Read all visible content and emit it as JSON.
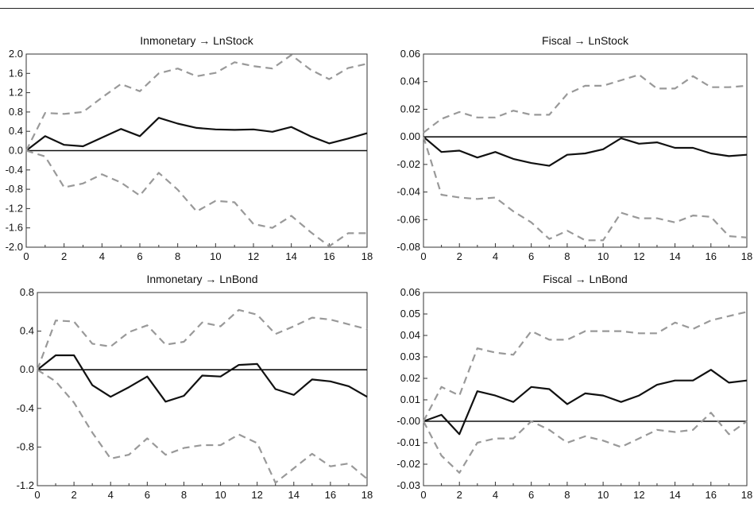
{
  "chart_data": [
    {
      "type": "line",
      "title": "Inmonetary → LnStock",
      "x": [
        0,
        1,
        2,
        3,
        4,
        5,
        6,
        7,
        8,
        9,
        10,
        11,
        12,
        13,
        14,
        15,
        16,
        17,
        18
      ],
      "xlim": [
        0,
        18
      ],
      "xticks": [
        0,
        2,
        4,
        6,
        8,
        10,
        12,
        14,
        16,
        18
      ],
      "xtick_labels": [
        "0",
        "2",
        "4",
        "6",
        "8",
        "10",
        "12",
        "14",
        "16",
        "18"
      ],
      "ylim": [
        -2.0,
        2.0
      ],
      "yticks": [
        -2.0,
        -1.6,
        -1.2,
        -0.8,
        -0.4,
        0.0,
        0.4,
        0.8,
        1.2,
        1.6,
        2.0
      ],
      "ytick_labels": [
        "-2.0",
        "-1.6",
        "-1.2",
        "-0.8",
        "-0.4",
        "0.0",
        "0.4",
        "0.8",
        "1.2",
        "1.6",
        "2.0"
      ],
      "zero_line": 0,
      "grid": false,
      "legend": "none",
      "series": [
        {
          "role": "response",
          "style": "solid",
          "color": "#111111",
          "values": [
            0.0,
            0.3,
            0.12,
            0.09,
            0.27,
            0.45,
            0.3,
            0.68,
            0.56,
            0.47,
            0.44,
            0.43,
            0.44,
            0.39,
            0.49,
            0.3,
            0.15,
            0.25,
            0.36
          ]
        },
        {
          "role": "upper",
          "style": "dashed",
          "color": "#999999",
          "values": [
            0.0,
            0.78,
            0.76,
            0.8,
            1.1,
            1.38,
            1.23,
            1.6,
            1.7,
            1.54,
            1.61,
            1.83,
            1.75,
            1.7,
            1.98,
            1.68,
            1.48,
            1.71,
            1.8
          ]
        },
        {
          "role": "lower",
          "style": "dashed",
          "color": "#999999",
          "values": [
            0.0,
            -0.12,
            -0.76,
            -0.68,
            -0.49,
            -0.66,
            -0.93,
            -0.46,
            -0.81,
            -1.26,
            -1.04,
            -1.07,
            -1.52,
            -1.6,
            -1.35,
            -1.68,
            -1.98,
            -1.71,
            -1.71
          ]
        }
      ]
    },
    {
      "type": "line",
      "title": "Fiscal → LnStock",
      "x": [
        0,
        1,
        2,
        3,
        4,
        5,
        6,
        7,
        8,
        9,
        10,
        11,
        12,
        13,
        14,
        15,
        16,
        17,
        18
      ],
      "xlim": [
        0,
        18
      ],
      "xticks": [
        0,
        2,
        4,
        6,
        8,
        10,
        12,
        14,
        16,
        18
      ],
      "xtick_labels": [
        "0",
        "2",
        "4",
        "6",
        "8",
        "10",
        "12",
        "14",
        "16",
        "18"
      ],
      "ylim": [
        -0.08,
        0.06
      ],
      "yticks": [
        -0.08,
        -0.06,
        -0.04,
        -0.02,
        0.0,
        0.02,
        0.04,
        0.06
      ],
      "ytick_labels": [
        "-0.08",
        "-0.06",
        "-0.04",
        "-0.02",
        "0.00",
        "0.02",
        "0.04",
        "0.06"
      ],
      "zero_line": 0,
      "grid": false,
      "legend": "none",
      "series": [
        {
          "role": "response",
          "style": "solid",
          "color": "#111111",
          "values": [
            0.0,
            -0.011,
            -0.01,
            -0.015,
            -0.011,
            -0.016,
            -0.019,
            -0.021,
            -0.013,
            -0.012,
            -0.009,
            -0.001,
            -0.005,
            -0.004,
            -0.008,
            -0.008,
            -0.012,
            -0.014,
            -0.013
          ]
        },
        {
          "role": "upper",
          "style": "dashed",
          "color": "#999999",
          "values": [
            0.003,
            0.013,
            0.018,
            0.014,
            0.014,
            0.019,
            0.016,
            0.016,
            0.031,
            0.037,
            0.037,
            0.041,
            0.045,
            0.035,
            0.035,
            0.044,
            0.036,
            0.036,
            0.037
          ]
        },
        {
          "role": "lower",
          "style": "dashed",
          "color": "#999999",
          "values": [
            0.0,
            -0.042,
            -0.044,
            -0.045,
            -0.044,
            -0.054,
            -0.062,
            -0.074,
            -0.068,
            -0.075,
            -0.075,
            -0.055,
            -0.059,
            -0.059,
            -0.062,
            -0.057,
            -0.058,
            -0.072,
            -0.073
          ]
        }
      ]
    },
    {
      "type": "line",
      "title": "Inmonetary → LnBond",
      "x": [
        0,
        1,
        2,
        3,
        4,
        5,
        6,
        7,
        8,
        9,
        10,
        11,
        12,
        13,
        14,
        15,
        16,
        17,
        18
      ],
      "xlim": [
        0,
        18
      ],
      "xticks": [
        0,
        2,
        4,
        6,
        8,
        10,
        12,
        14,
        16,
        18
      ],
      "xtick_labels": [
        "0",
        "2",
        "4",
        "6",
        "8",
        "10",
        "12",
        "14",
        "16",
        "18"
      ],
      "ylim": [
        -1.2,
        0.8
      ],
      "yticks": [
        -1.2,
        -0.8,
        -0.4,
        0.0,
        0.4,
        0.8
      ],
      "ytick_labels": [
        "-1.2",
        "-0.8",
        "-0.4",
        "0.0",
        "0.4",
        "0.8"
      ],
      "zero_line": 0,
      "grid": false,
      "legend": "none",
      "series": [
        {
          "role": "response",
          "style": "solid",
          "color": "#111111",
          "values": [
            0.0,
            0.15,
            0.15,
            -0.16,
            -0.28,
            -0.18,
            -0.07,
            -0.33,
            -0.27,
            -0.06,
            -0.07,
            0.05,
            0.06,
            -0.2,
            -0.26,
            -0.1,
            -0.12,
            -0.17,
            -0.28
          ]
        },
        {
          "role": "upper",
          "style": "dashed",
          "color": "#999999",
          "values": [
            0.0,
            0.51,
            0.5,
            0.27,
            0.24,
            0.39,
            0.46,
            0.26,
            0.29,
            0.49,
            0.45,
            0.62,
            0.57,
            0.37,
            0.45,
            0.54,
            0.52,
            0.47,
            0.42
          ]
        },
        {
          "role": "lower",
          "style": "dashed",
          "color": "#999999",
          "values": [
            0.0,
            -0.12,
            -0.34,
            -0.65,
            -0.92,
            -0.88,
            -0.71,
            -0.88,
            -0.81,
            -0.78,
            -0.78,
            -0.67,
            -0.76,
            -1.17,
            -1.02,
            -0.87,
            -1.0,
            -0.97,
            -1.13
          ]
        }
      ]
    },
    {
      "type": "line",
      "title": "Fiscal → LnBond",
      "x": [
        0,
        1,
        2,
        3,
        4,
        5,
        6,
        7,
        8,
        9,
        10,
        11,
        12,
        13,
        14,
        15,
        16,
        17,
        18
      ],
      "xlim": [
        0,
        18
      ],
      "xticks": [
        0,
        2,
        4,
        6,
        8,
        10,
        12,
        14,
        16,
        18
      ],
      "xtick_labels": [
        "0",
        "2",
        "4",
        "6",
        "8",
        "10",
        "12",
        "14",
        "16",
        "18"
      ],
      "ylim": [
        -0.03,
        0.06
      ],
      "yticks": [
        -0.03,
        -0.02,
        -0.01,
        0.0,
        0.01,
        0.02,
        0.03,
        0.04,
        0.05,
        0.06
      ],
      "ytick_labels": [
        "-0.03",
        "-0.02",
        "-0.01",
        "-0.00",
        "0.01",
        "0.02",
        "0.03",
        "0.04",
        "0.05",
        "0.06"
      ],
      "zero_line": 0,
      "grid": false,
      "legend": "none",
      "series": [
        {
          "role": "response",
          "style": "solid",
          "color": "#111111",
          "values": [
            0.0,
            0.003,
            -0.006,
            0.014,
            0.012,
            0.009,
            0.016,
            0.015,
            0.008,
            0.013,
            0.012,
            0.009,
            0.012,
            0.017,
            0.019,
            0.019,
            0.024,
            0.018,
            0.019
          ]
        },
        {
          "role": "upper",
          "style": "dashed",
          "color": "#999999",
          "values": [
            0.0,
            0.016,
            0.012,
            0.034,
            0.032,
            0.031,
            0.042,
            0.038,
            0.038,
            0.042,
            0.042,
            0.042,
            0.041,
            0.041,
            0.046,
            0.043,
            0.047,
            0.049,
            0.051
          ]
        },
        {
          "role": "lower",
          "style": "dashed",
          "color": "#999999",
          "values": [
            0.0,
            -0.016,
            -0.024,
            -0.01,
            -0.008,
            -0.008,
            0.0,
            -0.004,
            -0.01,
            -0.007,
            -0.009,
            -0.012,
            -0.008,
            -0.004,
            -0.005,
            -0.004,
            0.004,
            -0.006,
            0.0
          ]
        }
      ]
    }
  ]
}
